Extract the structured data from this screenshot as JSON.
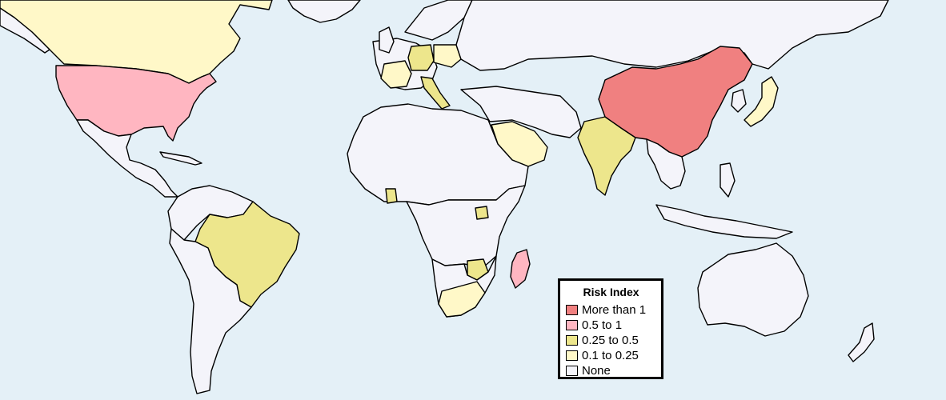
{
  "legend": {
    "title": "Risk Index",
    "items": [
      {
        "label": "More than 1",
        "color": "#f08080"
      },
      {
        "label": "0.5 to 1",
        "color": "#ffb6c1"
      },
      {
        "label": "0.25 to 0.5",
        "color": "#ede68c"
      },
      {
        "label": "0.1 to 0.25",
        "color": "#fff8c8"
      },
      {
        "label": "None",
        "color": "#f4f4fa"
      }
    ]
  },
  "colors": {
    "ocean": "#e4f0f7",
    "border": "#000000"
  },
  "map_data": {
    "type": "choropleth",
    "regions": [
      {
        "region": "China",
        "category": "More than 1"
      },
      {
        "region": "United States",
        "category": "0.5 to 1"
      },
      {
        "region": "Madagascar",
        "category": "0.5 to 1"
      },
      {
        "region": "Brazil",
        "category": "0.25 to 0.5"
      },
      {
        "region": "India",
        "category": "0.25 to 0.5"
      },
      {
        "region": "Germany",
        "category": "0.25 to 0.5"
      },
      {
        "region": "Italy",
        "category": "0.25 to 0.5"
      },
      {
        "region": "Zimbabwe",
        "category": "0.25 to 0.5"
      },
      {
        "region": "Uganda",
        "category": "0.25 to 0.5"
      },
      {
        "region": "Ghana",
        "category": "0.25 to 0.5"
      },
      {
        "region": "Canada",
        "category": "0.1 to 0.25"
      },
      {
        "region": "Saudi Arabia",
        "category": "0.1 to 0.25"
      },
      {
        "region": "South Africa",
        "category": "0.1 to 0.25"
      },
      {
        "region": "Japan",
        "category": "0.1 to 0.25"
      },
      {
        "region": "France",
        "category": "0.1 to 0.25"
      },
      {
        "region": "Poland",
        "category": "0.1 to 0.25"
      },
      {
        "region": "Thailand",
        "category": "0.1 to 0.25"
      },
      {
        "region": "Vietnam",
        "category": "0.1 to 0.25"
      },
      {
        "region": "Myanmar",
        "category": "0.1 to 0.25"
      }
    ]
  }
}
